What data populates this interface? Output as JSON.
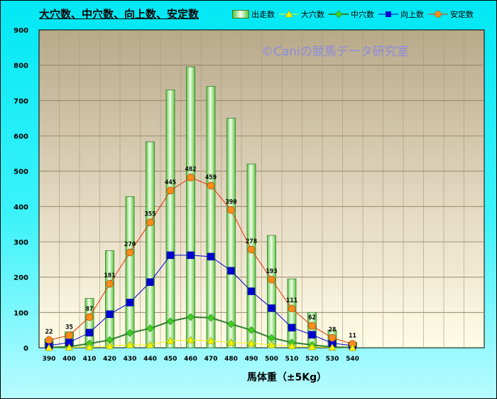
{
  "chart_data": {
    "type": "bar",
    "title": "大穴数、中穴数、向上数、安定数",
    "xlabel": "馬体重（±5Kg）",
    "ylabel": "",
    "ylim": [
      0,
      900
    ],
    "yticks": [
      0,
      100,
      200,
      300,
      400,
      500,
      600,
      700,
      800,
      900
    ],
    "grid": true,
    "legend_position": "top-right",
    "annotation": "©Caniの競馬データ研究室",
    "categories": [
      "390",
      "400",
      "410",
      "420",
      "430",
      "440",
      "450",
      "460",
      "470",
      "480",
      "490",
      "500",
      "510",
      "520",
      "530",
      "540"
    ],
    "series": [
      {
        "name": "出走数",
        "kind": "bar",
        "color": "#7fd957",
        "values": [
          25,
          45,
          140,
          275,
          428,
          583,
          730,
          795,
          740,
          650,
          520,
          318,
          195,
          100,
          50,
          15
        ]
      },
      {
        "name": "大穴数",
        "kind": "line",
        "color": "#f5f500",
        "marker": "triangle",
        "values": [
          0,
          1,
          2,
          5,
          8,
          8,
          20,
          22,
          20,
          15,
          13,
          8,
          5,
          2,
          1,
          0
        ]
      },
      {
        "name": "中穴数",
        "kind": "line",
        "color": "#2f7f2f",
        "marker": "diamond",
        "values": [
          1,
          3,
          12,
          22,
          42,
          55,
          75,
          87,
          85,
          67,
          50,
          28,
          15,
          8,
          2,
          1
        ]
      },
      {
        "name": "向上数",
        "kind": "line",
        "color": "#0000d0",
        "marker": "square",
        "values": [
          6,
          15,
          43,
          95,
          128,
          186,
          262,
          262,
          258,
          218,
          160,
          112,
          57,
          37,
          13,
          6
        ]
      },
      {
        "name": "安定数",
        "kind": "line",
        "color": "#ff8c1a",
        "marker": "circle",
        "values": [
          22,
          35,
          87,
          181,
          270,
          355,
          445,
          482,
          459,
          390,
          278,
          193,
          111,
          62,
          28,
          11
        ],
        "data_labels": [
          "22",
          "35",
          "87",
          "181",
          "270",
          "355",
          "445",
          "482",
          "459",
          "390",
          "278",
          "193",
          "111",
          "62",
          "28",
          "11"
        ]
      }
    ]
  }
}
